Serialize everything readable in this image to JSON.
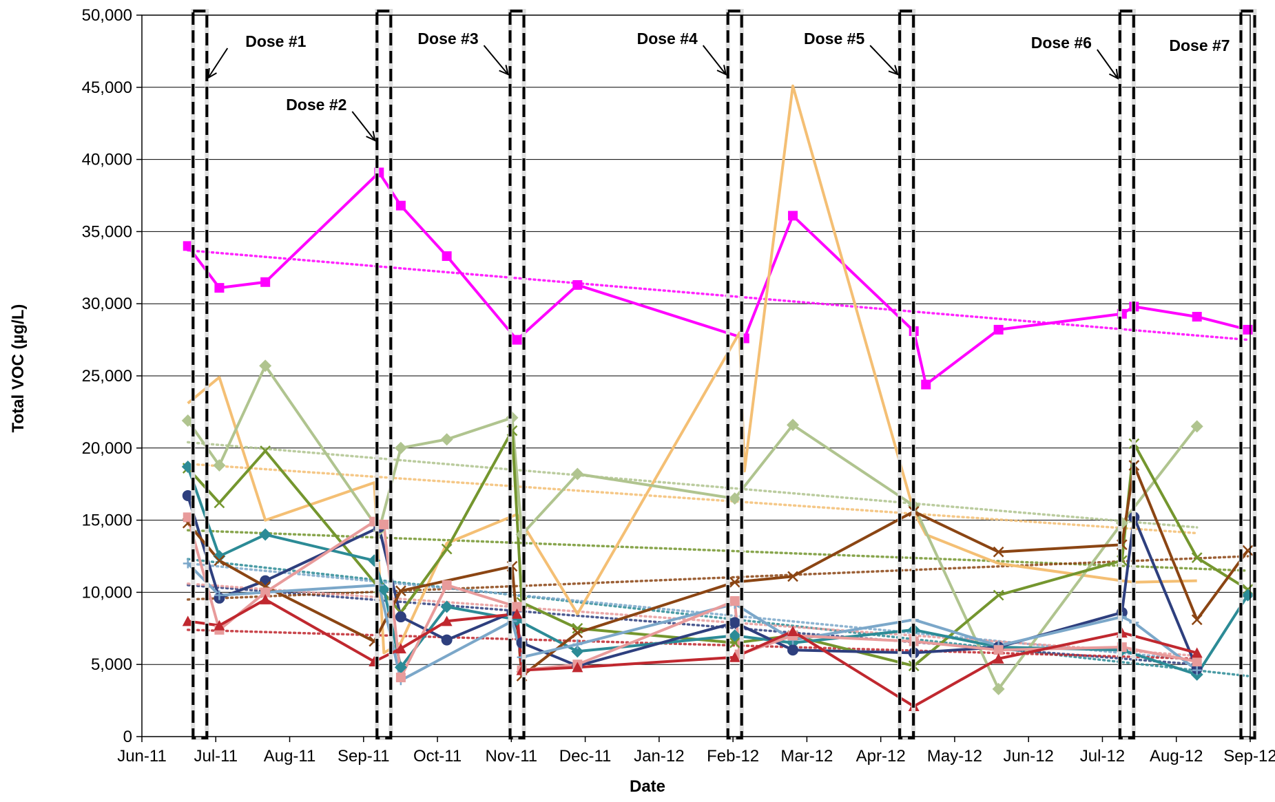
{
  "chart_data": {
    "type": "line",
    "xlabel": "Date",
    "ylabel": "Total VOC (µg/L)",
    "x_tick_labels": [
      "Jun-11",
      "Jul-11",
      "Aug-11",
      "Sep-11",
      "Oct-11",
      "Nov-11",
      "Dec-11",
      "Jan-12",
      "Feb-12",
      "Mar-12",
      "Apr-12",
      "May-12",
      "Jun-12",
      "Jul-12",
      "Aug-12",
      "Sep-12"
    ],
    "xlim": [
      "2011-06-01",
      "2012-09-01"
    ],
    "y_tick_labels": [
      "0",
      "5,000",
      "10,000",
      "15,000",
      "20,000",
      "25,000",
      "30,000",
      "35,000",
      "40,000",
      "45,000",
      "50,000"
    ],
    "ylim": [
      0,
      50000
    ],
    "grid": "horizontal",
    "dose_events": [
      {
        "label": "Dose #1",
        "date": "2011-06-25"
      },
      {
        "label": "Dose #2",
        "date": "2011-09-09"
      },
      {
        "label": "Dose #3",
        "date": "2011-11-03"
      },
      {
        "label": "Dose #4",
        "date": "2012-02-01"
      },
      {
        "label": "Dose #5",
        "date": "2012-04-12"
      },
      {
        "label": "Dose #6",
        "date": "2012-07-12"
      },
      {
        "label": "Dose #7",
        "date": "2012-08-31"
      }
    ],
    "series": [
      {
        "color": "#FF00FF",
        "marker": "square",
        "x": [
          "2011-06-20",
          "2011-07-03",
          "2011-07-22",
          "2011-09-07",
          "2011-09-16",
          "2011-10-05",
          "2011-11-03",
          "2011-11-28",
          "2012-02-05",
          "2012-02-25",
          "2012-04-15",
          "2012-04-20",
          "2012-05-20",
          "2012-07-10",
          "2012-07-15",
          "2012-08-10",
          "2012-08-31"
        ],
        "y": [
          34000,
          31100,
          31500,
          39100,
          36800,
          33300,
          27500,
          31300,
          27600,
          36100,
          28100,
          24400,
          28200,
          29300,
          29800,
          29100,
          28200
        ],
        "trend": [
          33700,
          27500
        ]
      },
      {
        "color": "#F4BF74",
        "marker": "none",
        "x": [
          "2011-06-20",
          "2011-07-03",
          "2011-07-22",
          "2011-09-05",
          "2011-09-09",
          "2011-09-16",
          "2011-10-05",
          "2011-11-03",
          "2011-11-28",
          "2012-02-03",
          "2012-02-05",
          "2012-02-25",
          "2012-04-15",
          "2012-04-20",
          "2012-05-20",
          "2012-07-10",
          "2012-07-15",
          "2012-08-10"
        ],
        "y": [
          23100,
          24900,
          15000,
          17600,
          5800,
          6500,
          13400,
          15400,
          8500,
          28000,
          18400,
          45100,
          15600,
          14000,
          12000,
          10800,
          10700,
          10800
        ],
        "trend": [
          18900,
          14100
        ]
      },
      {
        "color": "#B0C48F",
        "marker": "diamond",
        "x": [
          "2011-06-20",
          "2011-07-03",
          "2011-07-22",
          "2011-09-07",
          "2011-09-16",
          "2011-10-05",
          "2011-11-01",
          "2011-11-05",
          "2011-11-28",
          "2012-02-01",
          "2012-02-25",
          "2012-04-15",
          "2012-05-20",
          "2012-07-10",
          "2012-08-10"
        ],
        "y": [
          21900,
          18800,
          25700,
          14300,
          20000,
          20600,
          22100,
          14000,
          18200,
          16500,
          21600,
          16000,
          3300,
          14800,
          21500
        ],
        "trend": [
          20400,
          14500
        ]
      },
      {
        "color": "#74962E",
        "marker": "x",
        "x": [
          "2011-06-20",
          "2011-07-03",
          "2011-07-22",
          "2011-09-07",
          "2011-09-16",
          "2011-10-05",
          "2011-11-01",
          "2011-11-05",
          "2011-11-28",
          "2012-02-01",
          "2012-02-25",
          "2012-04-15",
          "2012-05-20",
          "2012-07-10",
          "2012-07-15",
          "2012-08-10",
          "2012-08-31"
        ],
        "y": [
          18600,
          16200,
          19800,
          10300,
          8600,
          13000,
          21200,
          9300,
          7500,
          6500,
          7000,
          4900,
          9800,
          12200,
          20300,
          12400,
          10200
        ],
        "trend": [
          14300,
          11500
        ]
      },
      {
        "color": "#2C8B96",
        "marker": "diamond",
        "x": [
          "2011-06-20",
          "2011-07-03",
          "2011-07-22",
          "2011-09-05",
          "2011-09-09",
          "2011-09-16",
          "2011-10-05",
          "2011-11-03",
          "2011-11-28",
          "2012-02-01",
          "2012-02-25",
          "2012-04-15",
          "2012-05-20",
          "2012-07-10",
          "2012-08-10",
          "2012-08-31"
        ],
        "y": [
          18700,
          12500,
          14000,
          12200,
          10200,
          4800,
          9000,
          8100,
          5900,
          7000,
          6500,
          7400,
          6200,
          6000,
          4300,
          9800
        ],
        "trend": [
          12300,
          4200
        ]
      },
      {
        "color": "#2E3F7E",
        "marker": "circle",
        "x": [
          "2011-06-20",
          "2011-07-03",
          "2011-07-22",
          "2011-09-07",
          "2011-09-16",
          "2011-10-05",
          "2011-11-01",
          "2011-11-05",
          "2011-11-28",
          "2012-02-01",
          "2012-02-25",
          "2012-04-15",
          "2012-05-20",
          "2012-07-10",
          "2012-07-15",
          "2012-08-10"
        ],
        "y": [
          16700,
          9600,
          10800,
          14500,
          8300,
          6700,
          8600,
          6500,
          4900,
          7900,
          6000,
          5800,
          6200,
          8600,
          15200,
          4700
        ],
        "trend": [
          10500,
          5000
        ]
      },
      {
        "color": "#8B4513",
        "marker": "x",
        "x": [
          "2011-06-20",
          "2011-07-03",
          "2011-07-22",
          "2011-09-05",
          "2011-09-16",
          "2011-11-01",
          "2011-11-05",
          "2011-11-28",
          "2012-02-01",
          "2012-02-25",
          "2012-04-15",
          "2012-05-20",
          "2012-07-10",
          "2012-07-15",
          "2012-08-10",
          "2012-08-31"
        ],
        "y": [
          14800,
          12200,
          10400,
          6600,
          10100,
          11800,
          4200,
          7200,
          10700,
          11100,
          15600,
          12800,
          13300,
          18800,
          8100,
          12900
        ],
        "trend": [
          9500,
          12500
        ]
      },
      {
        "color": "#7BA7C9",
        "marker": "plus",
        "x": [
          "2011-06-20",
          "2011-07-03",
          "2011-07-22",
          "2011-09-07",
          "2011-09-16",
          "2011-11-01",
          "2011-11-05",
          "2011-11-28",
          "2012-02-01",
          "2012-02-25",
          "2012-04-15",
          "2012-05-20",
          "2012-07-10",
          "2012-07-15",
          "2012-08-10"
        ],
        "y": [
          12000,
          9800,
          10000,
          10500,
          3900,
          8000,
          5500,
          6400,
          9200,
          6700,
          8100,
          6300,
          8300,
          7900,
          4600
        ],
        "trend": [
          12000,
          5300
        ]
      },
      {
        "color": "#E89B9B",
        "marker": "square",
        "x": [
          "2011-06-20",
          "2011-07-03",
          "2011-07-22",
          "2011-09-05",
          "2011-09-09",
          "2011-09-16",
          "2011-10-05",
          "2011-11-03",
          "2011-11-05",
          "2011-11-28",
          "2012-02-01",
          "2012-02-03",
          "2012-02-25",
          "2012-04-15",
          "2012-05-20",
          "2012-07-10",
          "2012-08-10"
        ],
        "y": [
          15200,
          7400,
          10000,
          14900,
          14700,
          4100,
          10500,
          9000,
          4600,
          5000,
          9400,
          5700,
          7000,
          6600,
          6000,
          6200,
          5200
        ],
        "trend": [
          10600,
          5600
        ]
      },
      {
        "color": "#C0282F",
        "marker": "triangle",
        "x": [
          "2011-06-20",
          "2011-07-03",
          "2011-07-22",
          "2011-09-05",
          "2011-09-16",
          "2011-10-05",
          "2011-11-03",
          "2011-11-05",
          "2011-11-28",
          "2012-02-01",
          "2012-02-25",
          "2012-04-15",
          "2012-05-20",
          "2012-07-10",
          "2012-08-10"
        ],
        "y": [
          8000,
          7700,
          9500,
          5200,
          6100,
          8000,
          8500,
          4600,
          4800,
          5500,
          7300,
          2100,
          5400,
          7200,
          5800
        ],
        "trend": [
          7400,
          5400
        ]
      }
    ]
  }
}
